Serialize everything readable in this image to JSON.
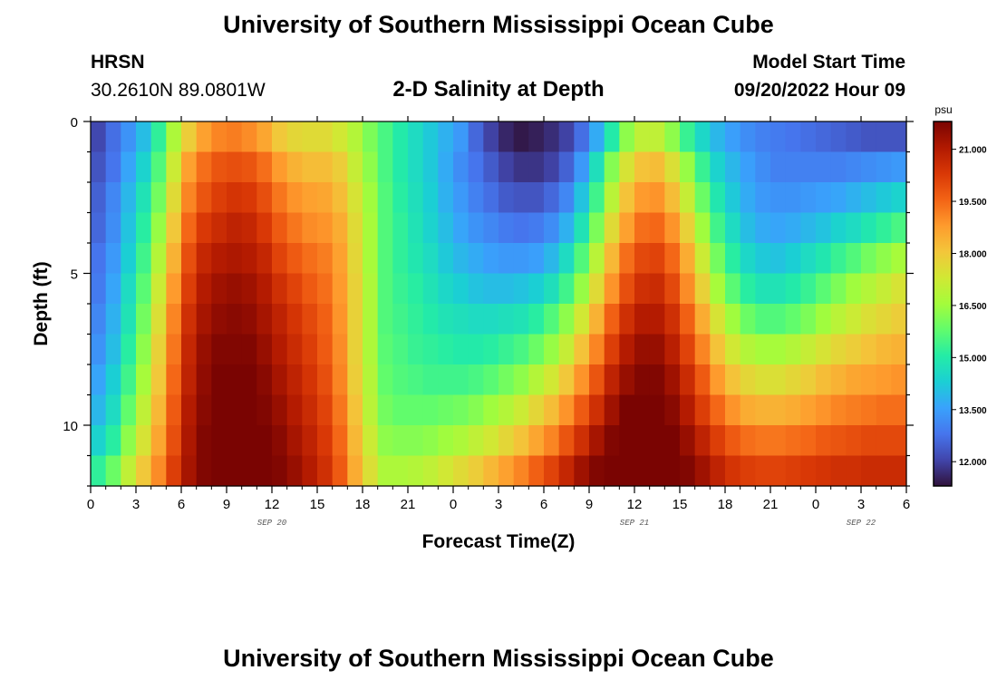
{
  "page": {
    "title": "University of Southern Mississippi Ocean Cube",
    "station": "HRSN",
    "coords": "30.2610N  89.0801W",
    "model_start_label": "Model Start Time",
    "model_start_value": "09/20/2022 Hour 09",
    "footer_title": "University of Southern Mississippi Ocean Cube"
  },
  "chart_data": {
    "type": "heatmap",
    "title": "2-D Salinity at Depth",
    "xlabel": "Forecast Time(Z)",
    "ylabel": "Depth (ft)",
    "x_hours_range": [
      0,
      54
    ],
    "x_tick_labels": [
      "0",
      "3",
      "6",
      "9",
      "12",
      "15",
      "18",
      "21",
      "0",
      "3",
      "6",
      "9",
      "12",
      "15",
      "18",
      "21",
      "0",
      "3",
      "6"
    ],
    "date_labels": [
      {
        "text": "SEP 20",
        "hour": 12
      },
      {
        "text": "SEP 21",
        "hour": 36
      },
      {
        "text": "SEP 22",
        "hour": 51
      }
    ],
    "y_range_ft": [
      0,
      12
    ],
    "y_tick_values": [
      0,
      5,
      10
    ],
    "y_tick_labels": [
      "0",
      "5",
      "10"
    ],
    "depth_layers": 12,
    "time_steps": 54,
    "colorbar": {
      "unit": "psu",
      "min": 11.3,
      "max": 21.8,
      "ticks": [
        12.0,
        13.5,
        15.0,
        16.5,
        18.0,
        19.5,
        21.0
      ],
      "tick_labels": [
        "12.000",
        "13.500",
        "15.000",
        "16.500",
        "18.000",
        "19.500",
        "21.000"
      ],
      "colors": [
        "#30123b",
        "#4145ab",
        "#4675ed",
        "#39a2fc",
        "#1bcfd4",
        "#24eca6",
        "#61fc6c",
        "#a4fc3b",
        "#d1e834",
        "#f3c63a",
        "#fe9b2d",
        "#f36315",
        "#d93806",
        "#b11901",
        "#7a0402"
      ]
    },
    "salinity_psu_by_depth_row": [
      [
        12.1,
        12.7,
        13.3,
        14.0,
        15.2,
        16.7,
        17.9,
        18.7,
        19.1,
        19.2,
        19.0,
        18.6,
        18.0,
        17.7,
        17.6,
        17.6,
        17.3,
        16.8,
        16.1,
        15.5,
        15.0,
        14.6,
        14.2,
        13.8,
        13.4,
        12.6,
        12.0,
        11.6,
        11.4,
        11.5,
        11.7,
        12.0,
        12.7,
        13.7,
        15.0,
        16.3,
        17.0,
        17.0,
        16.3,
        15.3,
        14.5,
        13.9,
        13.5,
        13.2,
        13.0,
        12.9,
        12.8,
        12.7,
        12.6,
        12.5,
        12.4,
        12.3,
        12.3,
        12.3
      ],
      [
        12.3,
        12.8,
        13.6,
        14.4,
        15.6,
        17.2,
        18.7,
        19.4,
        19.8,
        19.9,
        19.8,
        19.4,
        18.8,
        18.4,
        18.2,
        18.2,
        17.9,
        17.1,
        16.3,
        15.5,
        15.0,
        14.6,
        14.2,
        13.7,
        13.2,
        12.8,
        12.4,
        12.0,
        11.8,
        11.8,
        12.0,
        12.5,
        13.4,
        14.7,
        16.2,
        17.4,
        18.1,
        18.2,
        17.5,
        16.4,
        15.3,
        14.4,
        13.9,
        13.5,
        13.2,
        13.0,
        13.0,
        13.0,
        13.0,
        13.0,
        13.1,
        13.2,
        13.3,
        13.4
      ],
      [
        12.5,
        13.1,
        13.9,
        14.8,
        16.0,
        17.6,
        19.1,
        19.8,
        20.2,
        20.4,
        20.3,
        19.9,
        19.3,
        18.9,
        18.7,
        18.6,
        18.2,
        17.4,
        16.5,
        15.6,
        15.1,
        14.7,
        14.3,
        13.8,
        13.4,
        13.0,
        12.7,
        12.4,
        12.3,
        12.3,
        12.6,
        13.1,
        14.1,
        15.4,
        16.9,
        18.1,
        18.8,
        18.9,
        18.2,
        17.1,
        15.9,
        14.9,
        14.2,
        13.7,
        13.4,
        13.3,
        13.3,
        13.4,
        13.5,
        13.6,
        13.8,
        14.0,
        14.2,
        14.4
      ],
      [
        12.6,
        13.2,
        14.1,
        15.1,
        16.4,
        18.0,
        19.5,
        20.3,
        20.6,
        20.8,
        20.7,
        20.3,
        19.7,
        19.3,
        19.0,
        18.9,
        18.5,
        17.6,
        16.6,
        15.6,
        15.2,
        14.8,
        14.4,
        14.0,
        13.6,
        13.3,
        13.1,
        12.9,
        12.8,
        12.9,
        13.2,
        13.8,
        14.8,
        16.1,
        17.6,
        18.7,
        19.4,
        19.5,
        18.9,
        17.8,
        16.5,
        15.4,
        14.6,
        14.0,
        13.7,
        13.6,
        13.7,
        13.9,
        14.1,
        14.4,
        14.6,
        14.9,
        15.2,
        15.5
      ],
      [
        12.8,
        13.4,
        14.3,
        15.4,
        16.8,
        18.4,
        19.9,
        20.7,
        21.0,
        21.1,
        21.0,
        20.7,
        20.1,
        19.7,
        19.4,
        19.2,
        18.7,
        17.7,
        16.6,
        15.6,
        15.2,
        14.9,
        14.6,
        14.2,
        13.9,
        13.7,
        13.5,
        13.4,
        13.4,
        13.5,
        13.9,
        14.6,
        15.6,
        16.9,
        18.3,
        19.4,
        20.0,
        20.1,
        19.5,
        18.5,
        17.2,
        16.0,
        15.1,
        14.5,
        14.2,
        14.1,
        14.3,
        14.6,
        14.9,
        15.3,
        15.6,
        16.0,
        16.3,
        16.6
      ],
      [
        12.9,
        13.6,
        14.6,
        15.7,
        17.2,
        18.8,
        20.2,
        21.0,
        21.3,
        21.4,
        21.3,
        21.0,
        20.5,
        20.1,
        19.7,
        19.4,
        18.8,
        17.8,
        16.7,
        15.6,
        15.3,
        15.1,
        14.8,
        14.5,
        14.3,
        14.1,
        14.0,
        14.0,
        14.1,
        14.3,
        14.7,
        15.4,
        16.4,
        17.6,
        18.9,
        19.9,
        20.5,
        20.6,
        20.0,
        19.0,
        17.8,
        16.6,
        15.7,
        15.1,
        14.8,
        14.8,
        15.0,
        15.3,
        15.7,
        16.1,
        16.5,
        16.8,
        17.1,
        17.4
      ],
      [
        13.1,
        13.8,
        14.8,
        16.0,
        17.5,
        19.1,
        20.5,
        21.2,
        21.5,
        21.6,
        21.5,
        21.2,
        20.8,
        20.4,
        20.0,
        19.6,
        18.9,
        17.8,
        16.7,
        15.6,
        15.4,
        15.2,
        15.0,
        14.8,
        14.7,
        14.6,
        14.6,
        14.7,
        14.8,
        15.1,
        15.6,
        16.3,
        17.3,
        18.4,
        19.6,
        20.5,
        21.0,
        21.0,
        20.5,
        19.6,
        18.5,
        17.4,
        16.5,
        15.9,
        15.6,
        15.6,
        15.8,
        16.1,
        16.5,
        16.9,
        17.2,
        17.5,
        17.7,
        17.9
      ],
      [
        13.3,
        14.0,
        15.1,
        16.3,
        17.8,
        19.3,
        20.7,
        21.4,
        21.7,
        21.7,
        21.7,
        21.4,
        21.0,
        20.6,
        20.2,
        19.7,
        19.0,
        17.8,
        16.7,
        15.7,
        15.5,
        15.3,
        15.2,
        15.1,
        15.0,
        15.0,
        15.1,
        15.3,
        15.5,
        15.9,
        16.4,
        17.1,
        18.1,
        19.1,
        20.2,
        21.0,
        21.4,
        21.4,
        20.9,
        20.1,
        19.1,
        18.1,
        17.3,
        16.8,
        16.6,
        16.6,
        16.8,
        17.1,
        17.4,
        17.7,
        17.9,
        18.1,
        18.3,
        18.4
      ],
      [
        13.6,
        14.3,
        15.4,
        16.6,
        18.0,
        19.5,
        20.8,
        21.5,
        21.8,
        21.8,
        21.8,
        21.6,
        21.2,
        20.8,
        20.4,
        19.9,
        19.1,
        17.9,
        16.8,
        15.8,
        15.6,
        15.5,
        15.4,
        15.4,
        15.4,
        15.5,
        15.7,
        16.0,
        16.3,
        16.8,
        17.3,
        18.0,
        18.9,
        19.8,
        20.8,
        21.4,
        21.7,
        21.7,
        21.3,
        20.6,
        19.7,
        18.8,
        18.1,
        17.7,
        17.5,
        17.5,
        17.7,
        17.9,
        18.2,
        18.4,
        18.6,
        18.7,
        18.8,
        18.9
      ],
      [
        13.9,
        14.6,
        15.8,
        17.0,
        18.3,
        19.7,
        21.0,
        21.6,
        21.8,
        21.9,
        21.8,
        21.7,
        21.4,
        21.0,
        20.6,
        20.1,
        19.3,
        18.1,
        16.9,
        16.0,
        15.8,
        15.8,
        15.8,
        15.9,
        16.0,
        16.2,
        16.5,
        16.8,
        17.2,
        17.7,
        18.2,
        18.9,
        19.7,
        20.5,
        21.3,
        21.8,
        21.9,
        21.9,
        21.6,
        21.0,
        20.2,
        19.5,
        18.9,
        18.5,
        18.4,
        18.4,
        18.5,
        18.7,
        18.9,
        19.1,
        19.2,
        19.3,
        19.4,
        19.4
      ],
      [
        14.4,
        15.1,
        16.3,
        17.4,
        18.6,
        19.9,
        21.1,
        21.7,
        21.9,
        21.9,
        21.9,
        21.8,
        21.6,
        21.2,
        20.8,
        20.3,
        19.5,
        18.3,
        17.2,
        16.3,
        16.2,
        16.2,
        16.3,
        16.5,
        16.7,
        17.0,
        17.3,
        17.7,
        18.1,
        18.6,
        19.1,
        19.8,
        20.5,
        21.2,
        21.7,
        21.9,
        21.9,
        21.9,
        21.8,
        21.4,
        20.8,
        20.2,
        19.7,
        19.4,
        19.3,
        19.3,
        19.4,
        19.5,
        19.7,
        19.8,
        19.9,
        20.0,
        20.0,
        20.0
      ],
      [
        15.2,
        15.9,
        17.0,
        18.0,
        19.0,
        20.2,
        21.2,
        21.7,
        21.9,
        21.9,
        21.9,
        21.9,
        21.7,
        21.4,
        21.0,
        20.5,
        19.7,
        18.5,
        17.5,
        16.7,
        16.7,
        16.8,
        17.0,
        17.3,
        17.6,
        17.9,
        18.3,
        18.7,
        19.1,
        19.6,
        20.1,
        20.7,
        21.3,
        21.7,
        21.9,
        21.9,
        21.9,
        21.9,
        21.9,
        21.7,
        21.3,
        20.8,
        20.4,
        20.2,
        20.1,
        20.1,
        20.2,
        20.3,
        20.4,
        20.5,
        20.5,
        20.6,
        20.6,
        20.6
      ]
    ]
  }
}
